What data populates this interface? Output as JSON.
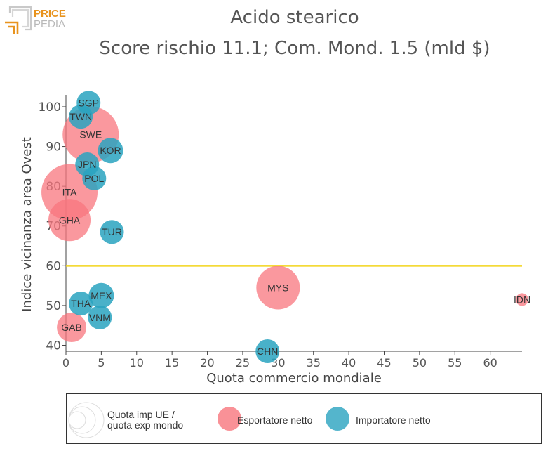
{
  "brand": {
    "line1": "PRICE",
    "line2": "PEDIA",
    "accent": "#e8931e"
  },
  "title": "Acido stearico",
  "subtitle": "Score rischio 11.1; Com. Mond. 1.5 (mld $)",
  "colors": {
    "exporter": "#f8767d",
    "importer": "#29a3bf",
    "threshold": "#f2d41c"
  },
  "legend": {
    "size_label": "Quota imp UE / quota exp mondo",
    "size_label_line1": "Quota imp UE /",
    "size_label_line2": "quota exp mondo",
    "exporter": "Esportatore netto",
    "importer": "Importatore netto"
  },
  "chart_data": {
    "type": "scatter",
    "xlabel": "Quota commercio mondiale",
    "ylabel": "Indice vicinanza area Ovest",
    "xlim": [
      0,
      64.5
    ],
    "ylim": [
      38.5,
      103
    ],
    "xticks": [
      0,
      5,
      10,
      15,
      20,
      25,
      30,
      35,
      40,
      45,
      50,
      55,
      60
    ],
    "yticks": [
      40,
      50,
      60,
      70,
      80,
      90,
      100
    ],
    "threshold_y": 60,
    "series": [
      {
        "name": "Esportatore netto",
        "points": [
          {
            "label": "SWE",
            "x": 3.5,
            "y": 93,
            "size": 40
          },
          {
            "label": "ITA",
            "x": 0.5,
            "y": 78.5,
            "size": 40
          },
          {
            "label": "GHA",
            "x": 0.5,
            "y": 71.5,
            "size": 30
          },
          {
            "label": "MYS",
            "x": 30,
            "y": 54.5,
            "size": 31
          },
          {
            "label": "GAB",
            "x": 0.8,
            "y": 44.5,
            "size": 21
          },
          {
            "label": "IDN",
            "x": 64.5,
            "y": 51.5,
            "size": 9
          }
        ]
      },
      {
        "name": "Importatore netto",
        "points": [
          {
            "label": "SGP",
            "x": 3.2,
            "y": 101,
            "size": 17
          },
          {
            "label": "TWN",
            "x": 2.1,
            "y": 97.5,
            "size": 17
          },
          {
            "label": "KOR",
            "x": 6.3,
            "y": 89,
            "size": 18
          },
          {
            "label": "JPN",
            "x": 3,
            "y": 85.5,
            "size": 17
          },
          {
            "label": "POL",
            "x": 4,
            "y": 82,
            "size": 17
          },
          {
            "label": "TUR",
            "x": 6.5,
            "y": 68.5,
            "size": 17
          },
          {
            "label": "MEX",
            "x": 5,
            "y": 52.5,
            "size": 18
          },
          {
            "label": "THA",
            "x": 2.1,
            "y": 50.5,
            "size": 17
          },
          {
            "label": "VNM",
            "x": 4.8,
            "y": 47,
            "size": 17
          },
          {
            "label": "CHN",
            "x": 28.5,
            "y": 38.5,
            "size": 17
          }
        ]
      }
    ]
  }
}
